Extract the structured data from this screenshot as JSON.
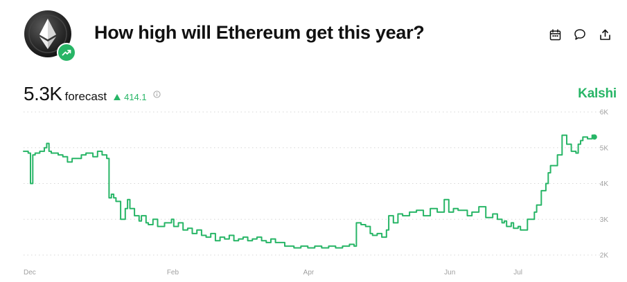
{
  "header": {
    "title": "How high will Ethereum get this year?",
    "icons": {
      "coin": "ethereum-coin-icon",
      "badge": "trending-up-icon",
      "calendar": "calendar-icon",
      "comment": "comment-icon",
      "share": "share-icon"
    }
  },
  "forecast": {
    "value": "5.3K",
    "label": "forecast",
    "change": "414.1",
    "change_direction": "up",
    "info_icon": "info-icon"
  },
  "brand": {
    "name": "Kalshi"
  },
  "colors": {
    "accent": "#27b566",
    "title": "#111111",
    "grid": "#d6d6d6",
    "tick": "#a0a0a0"
  },
  "chart_data": {
    "type": "line",
    "title": "",
    "xlabel": "",
    "ylabel": "",
    "ylim": [
      2000,
      6000
    ],
    "yticks": [
      2000,
      3000,
      4000,
      5000,
      6000
    ],
    "ytick_labels": [
      "2K",
      "3K",
      "4K",
      "5K",
      "6K"
    ],
    "xticks": [
      "Dec",
      "Feb",
      "Apr",
      "Jun",
      "Jul"
    ],
    "xtick_positions": [
      "2024-12-01",
      "2025-02-01",
      "2025-04-01",
      "2025-06-01",
      "2025-07-01"
    ],
    "grid": true,
    "grid_style": "dotted-horizontal",
    "legend": "none",
    "end_marker": true,
    "series": [
      {
        "x": [
          "2024-12-01",
          "2024-12-03",
          "2024-12-04",
          "2024-12-05",
          "2024-12-06",
          "2024-12-08",
          "2024-12-10",
          "2024-12-11",
          "2024-12-12",
          "2024-12-13",
          "2024-12-16",
          "2024-12-18",
          "2024-12-20",
          "2024-12-22",
          "2024-12-26",
          "2024-12-28",
          "2024-12-31",
          "2025-01-02",
          "2025-01-04",
          "2025-01-06",
          "2025-01-07",
          "2025-01-08",
          "2025-01-09",
          "2025-01-10",
          "2025-01-12",
          "2025-01-14",
          "2025-01-15",
          "2025-01-16",
          "2025-01-18",
          "2025-01-20",
          "2025-01-21",
          "2025-01-23",
          "2025-01-24",
          "2025-01-26",
          "2025-01-28",
          "2025-01-31",
          "2025-02-03",
          "2025-02-04",
          "2025-02-06",
          "2025-02-08",
          "2025-02-10",
          "2025-02-12",
          "2025-02-14",
          "2025-02-16",
          "2025-02-18",
          "2025-02-20",
          "2025-02-22",
          "2025-02-24",
          "2025-02-26",
          "2025-02-28",
          "2025-03-02",
          "2025-03-04",
          "2025-03-06",
          "2025-03-08",
          "2025-03-10",
          "2025-03-12",
          "2025-03-14",
          "2025-03-16",
          "2025-03-18",
          "2025-03-20",
          "2025-03-24",
          "2025-03-28",
          "2025-03-31",
          "2025-04-03",
          "2025-04-06",
          "2025-04-09",
          "2025-04-12",
          "2025-04-15",
          "2025-04-18",
          "2025-04-21",
          "2025-04-23",
          "2025-04-24",
          "2025-04-26",
          "2025-04-28",
          "2025-04-30",
          "2025-05-01",
          "2025-05-03",
          "2025-05-05",
          "2025-05-07",
          "2025-05-08",
          "2025-05-10",
          "2025-05-12",
          "2025-05-14",
          "2025-05-17",
          "2025-05-20",
          "2025-05-23",
          "2025-05-26",
          "2025-05-29",
          "2025-06-01",
          "2025-06-03",
          "2025-06-05",
          "2025-06-07",
          "2025-06-09",
          "2025-06-11",
          "2025-06-13",
          "2025-06-16",
          "2025-06-19",
          "2025-06-22",
          "2025-06-24",
          "2025-06-26",
          "2025-06-27",
          "2025-06-28",
          "2025-06-30",
          "2025-07-01",
          "2025-07-03",
          "2025-07-04",
          "2025-07-07",
          "2025-07-10",
          "2025-07-11",
          "2025-07-13",
          "2025-07-15",
          "2025-07-16",
          "2025-07-17",
          "2025-07-20",
          "2025-07-22",
          "2025-07-24",
          "2025-07-26",
          "2025-07-28",
          "2025-07-29",
          "2025-07-30",
          "2025-07-31",
          "2025-08-02",
          "2025-08-04",
          "2025-08-05"
        ],
        "values": [
          4900,
          4850,
          4000,
          4800,
          4850,
          4900,
          5000,
          5120,
          4900,
          4850,
          4800,
          4750,
          4600,
          4700,
          4800,
          4850,
          4750,
          4900,
          4800,
          4700,
          3600,
          3700,
          3600,
          3500,
          3000,
          3300,
          3550,
          3300,
          3100,
          2950,
          3100,
          2900,
          2850,
          3000,
          2800,
          2900,
          3000,
          2800,
          2900,
          2700,
          2750,
          2600,
          2700,
          2550,
          2500,
          2600,
          2400,
          2500,
          2450,
          2550,
          2400,
          2450,
          2500,
          2400,
          2450,
          2500,
          2400,
          2350,
          2450,
          2350,
          2250,
          2200,
          2250,
          2200,
          2250,
          2200,
          2250,
          2200,
          2250,
          2300,
          2250,
          2900,
          2850,
          2800,
          2600,
          2550,
          2600,
          2500,
          2700,
          3100,
          2900,
          3150,
          3100,
          3200,
          3250,
          3100,
          3300,
          3200,
          3550,
          3200,
          3300,
          3250,
          3250,
          3100,
          3200,
          3350,
          3050,
          3150,
          3000,
          2900,
          2950,
          2800,
          2900,
          2750,
          2800,
          2700,
          3000,
          3200,
          3400,
          3800,
          4000,
          4300,
          4500,
          4800,
          5350,
          5100,
          4900,
          4850,
          5100,
          5200,
          5300,
          5250,
          5350,
          5300
        ]
      }
    ]
  }
}
